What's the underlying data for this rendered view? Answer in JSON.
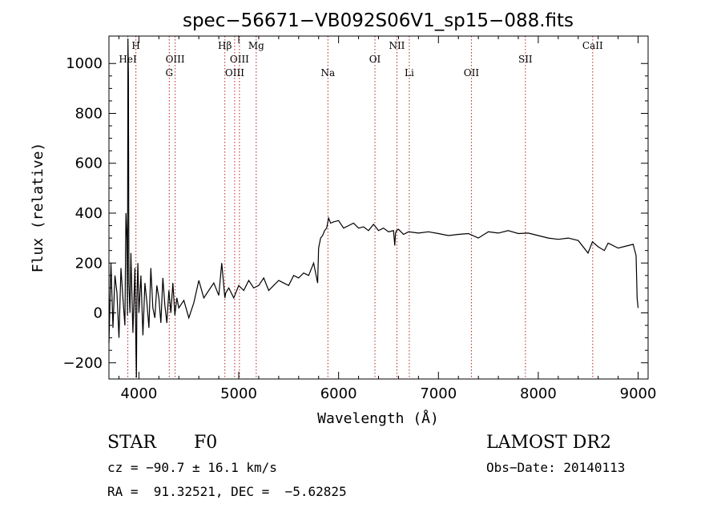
{
  "chart_data": {
    "type": "line",
    "title": "spec−56671−VB092S06V1_sp15−088.fits",
    "xlabel": "Wavelength (Å)",
    "ylabel": "Flux (relative)",
    "xlim": [
      3700,
      9100
    ],
    "ylim": [
      -265,
      1110
    ],
    "xticks": [
      4000,
      5000,
      6000,
      7000,
      8000,
      9000
    ],
    "xtick_labels": [
      "4000",
      "5000",
      "6000",
      "7000",
      "8000",
      "9000"
    ],
    "yticks": [
      -200,
      0,
      200,
      400,
      600,
      800,
      1000
    ],
    "ytick_labels": [
      "−200",
      "0",
      "200",
      "400",
      "600",
      "800",
      "1000"
    ],
    "grid": false,
    "series": [
      {
        "x": [
          3700,
          3720,
          3740,
          3760,
          3780,
          3800,
          3820,
          3840,
          3860,
          3870,
          3880,
          3885,
          3890,
          3895,
          3900,
          3910,
          3920,
          3940,
          3960,
          3970,
          3975,
          3980,
          3990,
          4000,
          4020,
          4040,
          4060,
          4080,
          4100,
          4120,
          4140,
          4160,
          4180,
          4200,
          4220,
          4240,
          4260,
          4280,
          4300,
          4320,
          4340,
          4360,
          4380,
          4400,
          4450,
          4500,
          4550,
          4600,
          4650,
          4700,
          4750,
          4800,
          4830,
          4850,
          4861,
          4870,
          4900,
          4950,
          5000,
          5050,
          5100,
          5150,
          5200,
          5250,
          5300,
          5350,
          5400,
          5450,
          5500,
          5550,
          5600,
          5650,
          5700,
          5750,
          5790,
          5800,
          5820,
          5840,
          5860,
          5880,
          5900,
          5920,
          5950,
          6000,
          6050,
          6100,
          6150,
          6200,
          6250,
          6300,
          6350,
          6400,
          6450,
          6500,
          6550,
          6563,
          6570,
          6580,
          6600,
          6650,
          6700,
          6800,
          6900,
          7000,
          7100,
          7200,
          7300,
          7400,
          7500,
          7600,
          7700,
          7800,
          7900,
          8000,
          8100,
          8200,
          8300,
          8400,
          8498,
          8542,
          8600,
          8662,
          8700,
          8800,
          8900,
          8950,
          8980,
          8990,
          9000
        ],
        "y": [
          -120,
          200,
          -60,
          150,
          80,
          -100,
          180,
          60,
          -50,
          400,
          300,
          -10,
          1100,
          950,
          120,
          0,
          240,
          -80,
          180,
          -150,
          -260,
          50,
          200,
          0,
          150,
          -90,
          120,
          40,
          -60,
          180,
          20,
          -20,
          110,
          60,
          -40,
          140,
          30,
          -40,
          90,
          0,
          120,
          -10,
          60,
          20,
          50,
          -20,
          40,
          130,
          60,
          90,
          120,
          70,
          200,
          110,
          60,
          80,
          100,
          60,
          110,
          90,
          130,
          100,
          110,
          140,
          90,
          110,
          130,
          120,
          110,
          150,
          140,
          160,
          150,
          200,
          120,
          260,
          300,
          310,
          330,
          340,
          380,
          360,
          365,
          370,
          340,
          350,
          360,
          340,
          345,
          330,
          355,
          330,
          340,
          325,
          330,
          270,
          320,
          330,
          335,
          315,
          325,
          320,
          325,
          318,
          310,
          315,
          318,
          300,
          325,
          320,
          330,
          318,
          320,
          310,
          300,
          295,
          300,
          290,
          240,
          285,
          265,
          250,
          280,
          260,
          270,
          275,
          230,
          60,
          20
        ]
      }
    ],
    "line_ids": [
      {
        "label": "HeI",
        "wavelength": 3889,
        "row": 2
      },
      {
        "label": "H",
        "wavelength": 3970,
        "row": 1
      },
      {
        "label": "OIII",
        "wavelength": 4363,
        "row": 2
      },
      {
        "label": "G",
        "wavelength": 4304,
        "row": 3
      },
      {
        "label": "Hβ",
        "wavelength": 4861,
        "row": 1
      },
      {
        "label": "OIII",
        "wavelength": 4959,
        "row": 3
      },
      {
        "label": "OIII",
        "wavelength": 5007,
        "row": 2
      },
      {
        "label": "Mg",
        "wavelength": 5175,
        "row": 1
      },
      {
        "label": "Na",
        "wavelength": 5893,
        "row": 3
      },
      {
        "label": "OI",
        "wavelength": 6364,
        "row": 2
      },
      {
        "label": "NII",
        "wavelength": 6584,
        "row": 1
      },
      {
        "label": "Li",
        "wavelength": 6708,
        "row": 3
      },
      {
        "label": "OII",
        "wavelength": 7330,
        "row": 3
      },
      {
        "label": "SII",
        "wavelength": 7871,
        "row": 2
      },
      {
        "label": "CaII",
        "wavelength": 8545,
        "row": 1
      }
    ],
    "colors": {
      "spectrum": "#000000",
      "line_markers": "#b22222",
      "frame": "#000000"
    }
  },
  "info": {
    "object_class": "STAR",
    "subclass": "F0",
    "survey": "LAMOST DR2",
    "cz": "cz = −90.7 ± 16.1 km/s",
    "obs_date": "Obs−Date: 20140113",
    "coords": "RA =  91.32521, DEC =  −5.62825"
  }
}
